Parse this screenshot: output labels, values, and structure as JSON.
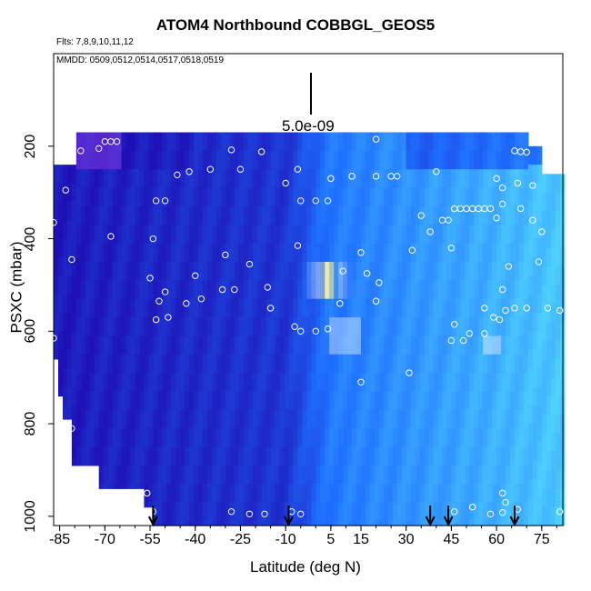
{
  "chart_data": {
    "type": "heatmap",
    "title": "ATOM4 Northbound COBBGL_GEOS5",
    "flights_text": "Flts: 7,8,9,10,11,12",
    "dates_text": "MMDD: 0509,0512,0514,0517,0518,0519",
    "xlabel": "Latitude (deg N)",
    "ylabel": "PSXC (mbar)",
    "xlim": [
      -87,
      82
    ],
    "ylim": [
      1020,
      0
    ],
    "x_ticks": [
      -85,
      -70,
      -55,
      -40,
      -25,
      -10,
      5,
      15,
      30,
      45,
      60,
      75
    ],
    "x_tick_labels": [
      "-85",
      "-70",
      "-55",
      "-40",
      "-25",
      "-10",
      "5",
      "15",
      "30",
      "45",
      "60",
      "75"
    ],
    "y_ticks": [
      200,
      400,
      600,
      800,
      1000
    ],
    "y_tick_labels": [
      "200",
      "400",
      "600",
      "800",
      "1000"
    ],
    "scale_bar_label": "5.0e-09",
    "colors": {
      "low": "#1e0fb4",
      "mid": "#1e6eff",
      "high": "#50d2ff",
      "peak": "#fff5a0",
      "marker": "#ffffff",
      "arrow": "#000000"
    },
    "sample_points": [
      {
        "lat": -70,
        "p": 190
      },
      {
        "lat": -68,
        "p": 190
      },
      {
        "lat": -66,
        "p": 190
      },
      {
        "lat": -72,
        "p": 205
      },
      {
        "lat": -84,
        "p": 215
      },
      {
        "lat": -78,
        "p": 210
      },
      {
        "lat": -28,
        "p": 208
      },
      {
        "lat": -18,
        "p": 212
      },
      {
        "lat": 20,
        "p": 185
      },
      {
        "lat": 66,
        "p": 210
      },
      {
        "lat": 68,
        "p": 212
      },
      {
        "lat": 70,
        "p": 213
      },
      {
        "lat": -46,
        "p": 262
      },
      {
        "lat": -42,
        "p": 255
      },
      {
        "lat": -35,
        "p": 250
      },
      {
        "lat": -25,
        "p": 250
      },
      {
        "lat": -10,
        "p": 280
      },
      {
        "lat": -6,
        "p": 250
      },
      {
        "lat": 5,
        "p": 270
      },
      {
        "lat": 12,
        "p": 265
      },
      {
        "lat": 20,
        "p": 265
      },
      {
        "lat": 25,
        "p": 265
      },
      {
        "lat": 27,
        "p": 265
      },
      {
        "lat": 40,
        "p": 255
      },
      {
        "lat": 60,
        "p": 270
      },
      {
        "lat": 62,
        "p": 290
      },
      {
        "lat": 67,
        "p": 280
      },
      {
        "lat": 72,
        "p": 285
      },
      {
        "lat": -83,
        "p": 295
      },
      {
        "lat": -53,
        "p": 318
      },
      {
        "lat": -50,
        "p": 318
      },
      {
        "lat": -5,
        "p": 318
      },
      {
        "lat": 0,
        "p": 318
      },
      {
        "lat": 4,
        "p": 318
      },
      {
        "lat": 35,
        "p": 350
      },
      {
        "lat": 38,
        "p": 385
      },
      {
        "lat": 42,
        "p": 360
      },
      {
        "lat": 44,
        "p": 360
      },
      {
        "lat": 46,
        "p": 335
      },
      {
        "lat": 48,
        "p": 335
      },
      {
        "lat": 50,
        "p": 335
      },
      {
        "lat": 52,
        "p": 335
      },
      {
        "lat": 54,
        "p": 335
      },
      {
        "lat": 56,
        "p": 335
      },
      {
        "lat": 58,
        "p": 335
      },
      {
        "lat": 60,
        "p": 355
      },
      {
        "lat": 62,
        "p": 325
      },
      {
        "lat": 68,
        "p": 335
      },
      {
        "lat": 72,
        "p": 360
      },
      {
        "lat": 75,
        "p": 385
      },
      {
        "lat": -68,
        "p": 395
      },
      {
        "lat": -54,
        "p": 400
      },
      {
        "lat": -87,
        "p": 365
      },
      {
        "lat": -81,
        "p": 445
      },
      {
        "lat": -30,
        "p": 435
      },
      {
        "lat": -22,
        "p": 455
      },
      {
        "lat": -6,
        "p": 415
      },
      {
        "lat": 15,
        "p": 430
      },
      {
        "lat": 32,
        "p": 425
      },
      {
        "lat": 45,
        "p": 420
      },
      {
        "lat": 64,
        "p": 460
      },
      {
        "lat": 74,
        "p": 450
      },
      {
        "lat": -55,
        "p": 485
      },
      {
        "lat": -40,
        "p": 480
      },
      {
        "lat": -31,
        "p": 510
      },
      {
        "lat": -27,
        "p": 510
      },
      {
        "lat": -16,
        "p": 505
      },
      {
        "lat": 9,
        "p": 470
      },
      {
        "lat": 17,
        "p": 475
      },
      {
        "lat": 21,
        "p": 495
      },
      {
        "lat": 62,
        "p": 510
      },
      {
        "lat": -52,
        "p": 535
      },
      {
        "lat": -50,
        "p": 515
      },
      {
        "lat": -43,
        "p": 540
      },
      {
        "lat": -38,
        "p": 530
      },
      {
        "lat": -15,
        "p": 550
      },
      {
        "lat": 8,
        "p": 540
      },
      {
        "lat": 20,
        "p": 535
      },
      {
        "lat": 56,
        "p": 550
      },
      {
        "lat": 63,
        "p": 555
      },
      {
        "lat": 66,
        "p": 550
      },
      {
        "lat": 70,
        "p": 550
      },
      {
        "lat": 77,
        "p": 550
      },
      {
        "lat": 81,
        "p": 555
      },
      {
        "lat": -53,
        "p": 575
      },
      {
        "lat": -49,
        "p": 570
      },
      {
        "lat": -7,
        "p": 590
      },
      {
        "lat": -5,
        "p": 600
      },
      {
        "lat": 0,
        "p": 600
      },
      {
        "lat": 4,
        "p": 595
      },
      {
        "lat": 59,
        "p": 570
      },
      {
        "lat": 61,
        "p": 575
      },
      {
        "lat": 45,
        "p": 620
      },
      {
        "lat": 46,
        "p": 585
      },
      {
        "lat": 49,
        "p": 620
      },
      {
        "lat": 51,
        "p": 605
      },
      {
        "lat": 56,
        "p": 605
      },
      {
        "lat": -87,
        "p": 615
      },
      {
        "lat": 31,
        "p": 690
      },
      {
        "lat": 15,
        "p": 710
      },
      {
        "lat": -81,
        "p": 810
      },
      {
        "lat": -56,
        "p": 950
      },
      {
        "lat": 62,
        "p": 950
      },
      {
        "lat": 63,
        "p": 970
      },
      {
        "lat": -54,
        "p": 990
      },
      {
        "lat": -28,
        "p": 990
      },
      {
        "lat": -22,
        "p": 995
      },
      {
        "lat": -17,
        "p": 995
      },
      {
        "lat": -8,
        "p": 990
      },
      {
        "lat": -5,
        "p": 995
      },
      {
        "lat": 46,
        "p": 990
      },
      {
        "lat": 52,
        "p": 980
      },
      {
        "lat": 58,
        "p": 995
      },
      {
        "lat": 62,
        "p": 992
      },
      {
        "lat": 67,
        "p": 985
      },
      {
        "lat": 81,
        "p": 990
      }
    ],
    "arrow_latitudes": [
      -54,
      -9,
      38,
      44,
      66
    ]
  }
}
